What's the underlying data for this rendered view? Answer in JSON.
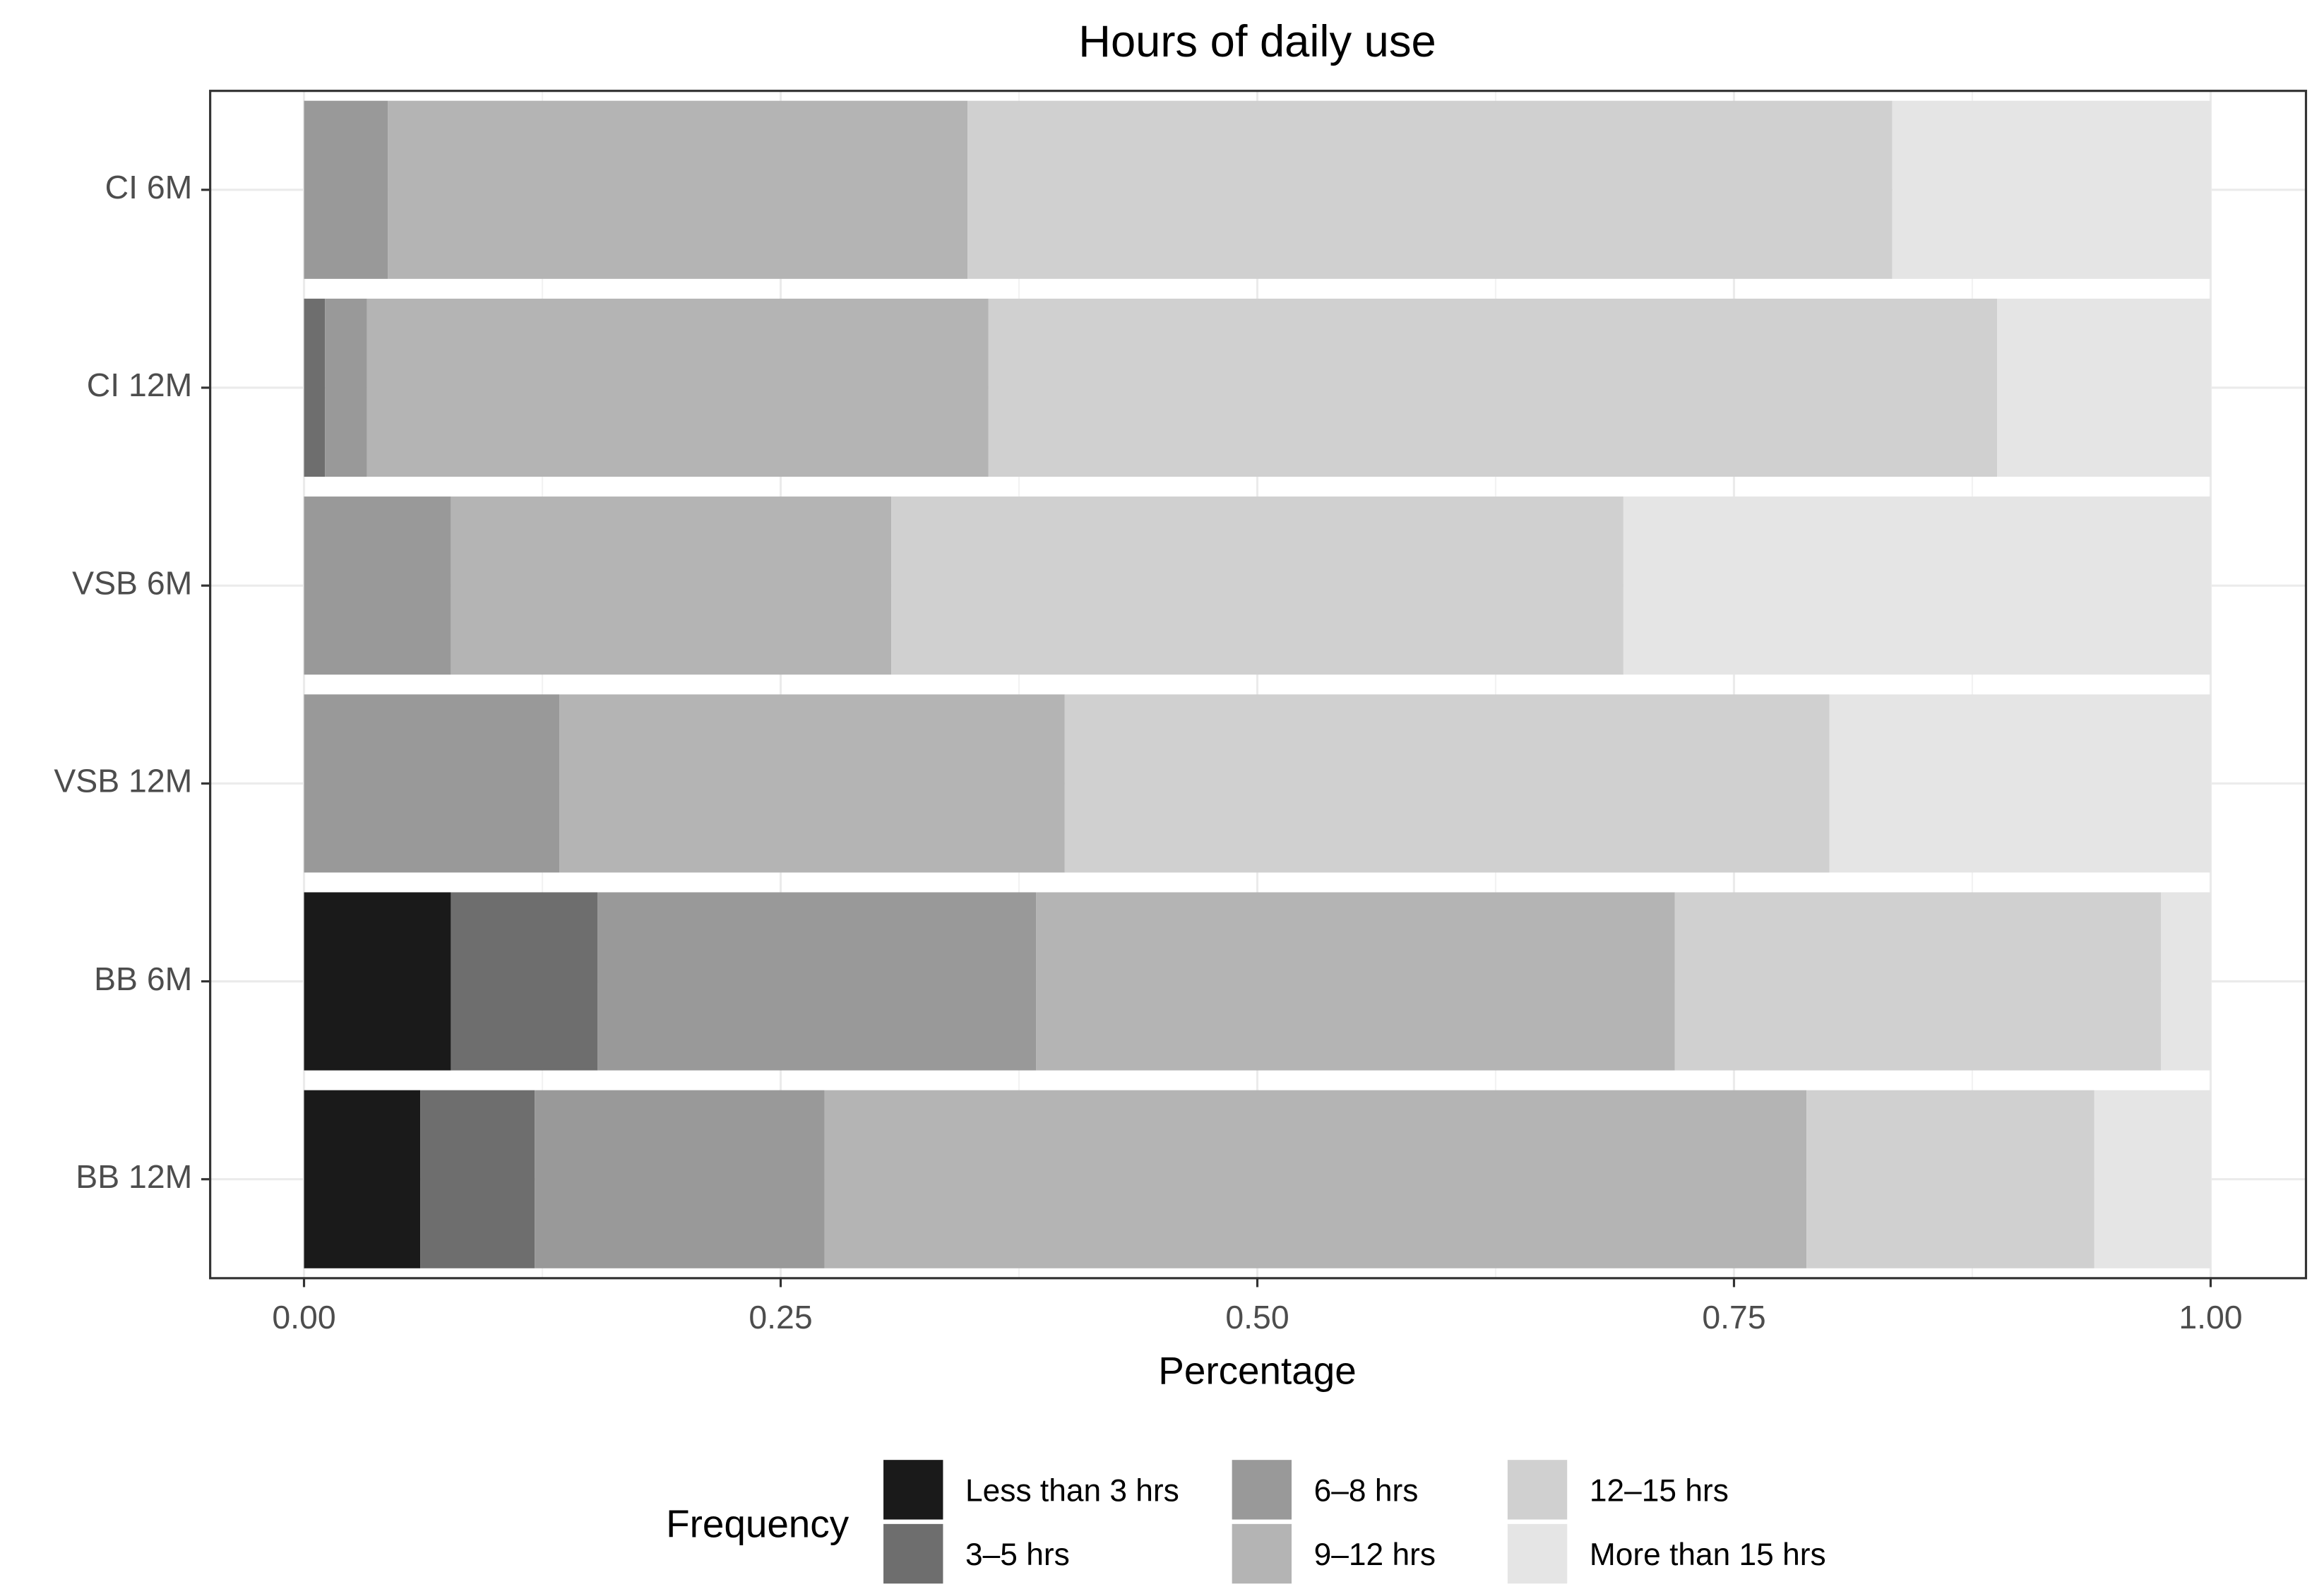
{
  "chart_data": {
    "type": "stacked-bar-horizontal",
    "title": "Hours of daily use",
    "x_label": "Percentage",
    "categories": [
      "CI 6M",
      "CI 12M",
      "VSB 6M",
      "VSB 12M",
      "BB 6M",
      "BB 12M"
    ],
    "series": [
      {
        "name": "Less than 3 hrs",
        "color": "#1a1a1a",
        "values": [
          0,
          0,
          0,
          0,
          0.077,
          0.061
        ]
      },
      {
        "name": "3–5 hrs",
        "color": "#6e6e6e",
        "values": [
          0,
          0.011,
          0,
          0,
          0.077,
          0.06
        ]
      },
      {
        "name": "6–8 hrs",
        "color": "#999999",
        "values": [
          0.044,
          0.022,
          0.077,
          0.134,
          0.23,
          0.152
        ]
      },
      {
        "name": "9–12 hrs",
        "color": "#b4b4b4",
        "values": [
          0.304,
          0.326,
          0.231,
          0.265,
          0.335,
          0.515
        ]
      },
      {
        "name": "12–15 hrs",
        "color": "#d0d0d0",
        "values": [
          0.485,
          0.529,
          0.384,
          0.401,
          0.255,
          0.151
        ]
      },
      {
        "name": "More than 15 hrs",
        "color": "#e5e5e5",
        "values": [
          0.167,
          0.112,
          0.308,
          0.2,
          0.026,
          0.061
        ]
      }
    ],
    "xlim": [
      0,
      1
    ],
    "xticks": [
      {
        "value": 0,
        "label": "0.00"
      },
      {
        "value": 0.25,
        "label": "0.25"
      },
      {
        "value": 0.5,
        "label": "0.50"
      },
      {
        "value": 0.75,
        "label": "0.75"
      },
      {
        "value": 1,
        "label": "1.00"
      }
    ],
    "grid": true,
    "legend_title": "Frequency",
    "legend_position": "bottom"
  }
}
